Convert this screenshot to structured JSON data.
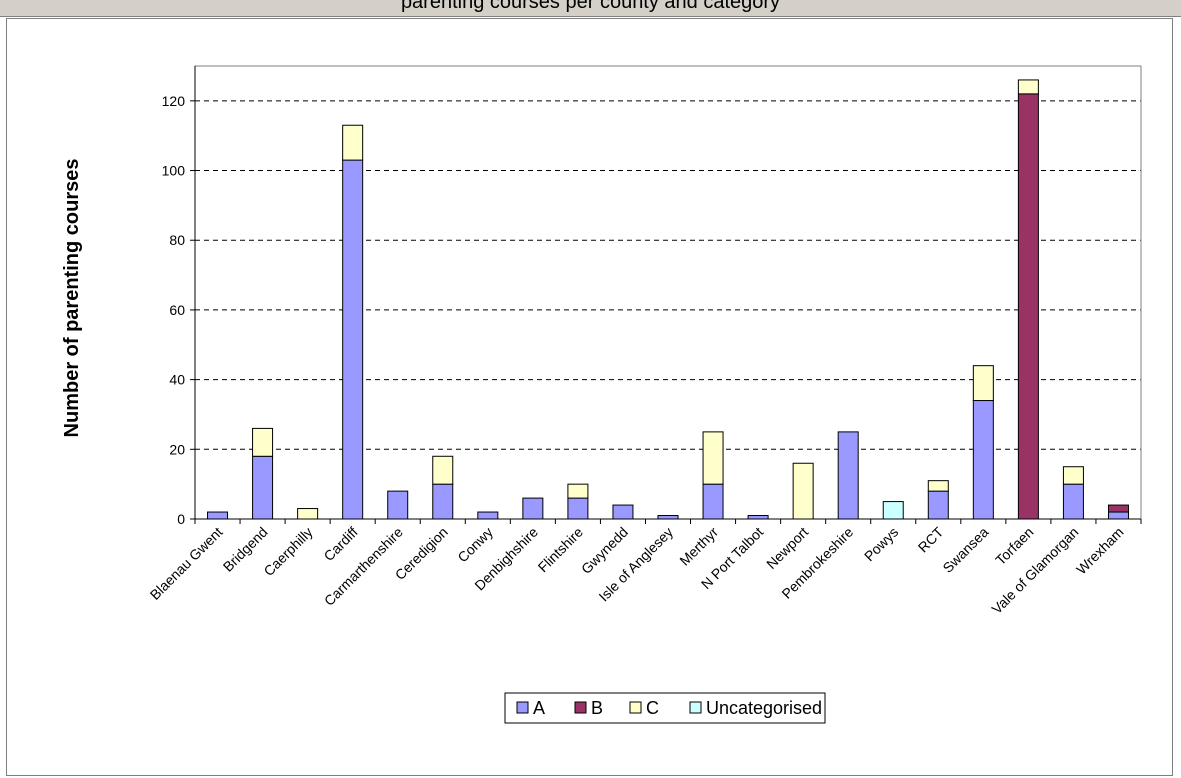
{
  "header": {
    "title": "parenting courses per county and category"
  },
  "chart_data": {
    "type": "bar",
    "stacked": true,
    "ylabel": "Number of parenting courses",
    "xlabel": "",
    "ylim": [
      0,
      130
    ],
    "yticks": [
      0,
      20,
      40,
      60,
      80,
      100,
      120
    ],
    "grid": "horizontal dashed",
    "legend_position": "bottom",
    "categories": [
      "Blaenau Gwent",
      "Bridgend",
      "Caerphilly",
      "Cardiff",
      "Carmarthenshire",
      "Ceredigion",
      "Conwy",
      "Denbighshire",
      "Flintshire",
      "Gwynedd",
      "Isle of Anglesey",
      "Merthyr",
      "N Port Talbot",
      "Newport",
      "Pembrokeshire",
      "Powys",
      "RCT",
      "Swansea",
      "Torfaen",
      "Vale of Glamorgan",
      "Wrexham"
    ],
    "series": [
      {
        "name": "A",
        "color": "#9999ff",
        "values": [
          2,
          18,
          0,
          103,
          8,
          10,
          2,
          6,
          6,
          4,
          1,
          10,
          1,
          0,
          25,
          0,
          8,
          34,
          0,
          10,
          2
        ]
      },
      {
        "name": "B",
        "color": "#993366",
        "values": [
          0,
          0,
          0,
          0,
          0,
          0,
          0,
          0,
          0,
          0,
          0,
          0,
          0,
          0,
          0,
          0,
          0,
          0,
          122,
          0,
          2
        ]
      },
      {
        "name": "C",
        "color": "#ffffcc",
        "values": [
          0,
          8,
          3,
          10,
          0,
          8,
          0,
          0,
          4,
          0,
          0,
          15,
          0,
          16,
          0,
          0,
          3,
          10,
          4,
          5,
          0
        ]
      },
      {
        "name": "Uncategorised",
        "color": "#ccffff",
        "values": [
          0,
          0,
          0,
          0,
          0,
          0,
          0,
          0,
          0,
          0,
          0,
          0,
          0,
          0,
          0,
          5,
          0,
          0,
          0,
          0,
          0
        ]
      }
    ]
  }
}
